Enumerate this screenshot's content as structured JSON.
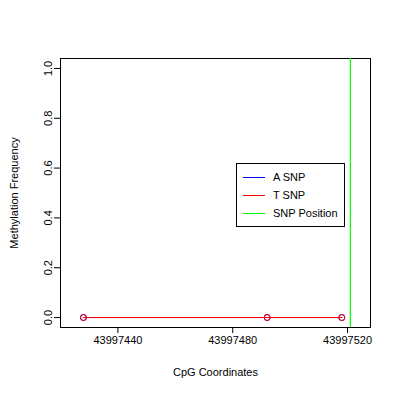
{
  "chart_data": {
    "type": "line",
    "xlabel": "CpG Coordinates",
    "ylabel": "Methylation Frequency",
    "x": [
      43997428,
      43997492,
      43997518
    ],
    "series": [
      {
        "name": "A SNP",
        "color": "#0000ff",
        "values": [
          0,
          0,
          0
        ],
        "marker": "circle"
      },
      {
        "name": "T SNP",
        "color": "#ff0000",
        "values": [
          0,
          0,
          0
        ],
        "marker": "circle"
      }
    ],
    "snp_position": {
      "name": "SNP Position",
      "value": 43997521,
      "color": "#00ff00"
    },
    "xlim": [
      43997420,
      43997528
    ],
    "xticks": [
      43997440,
      43997480,
      43997520
    ],
    "ylim": [
      -0.04,
      1.04
    ],
    "yticks": [
      {
        "value": 0,
        "label": "0.0"
      },
      {
        "value": 0.2,
        "label": "0.2"
      },
      {
        "value": 0.4,
        "label": "0.4"
      },
      {
        "value": 0.6,
        "label": "0.6"
      },
      {
        "value": 0.8,
        "label": "0.8"
      },
      {
        "value": 1,
        "label": "1.0"
      }
    ],
    "legend": "right",
    "grid": false
  }
}
